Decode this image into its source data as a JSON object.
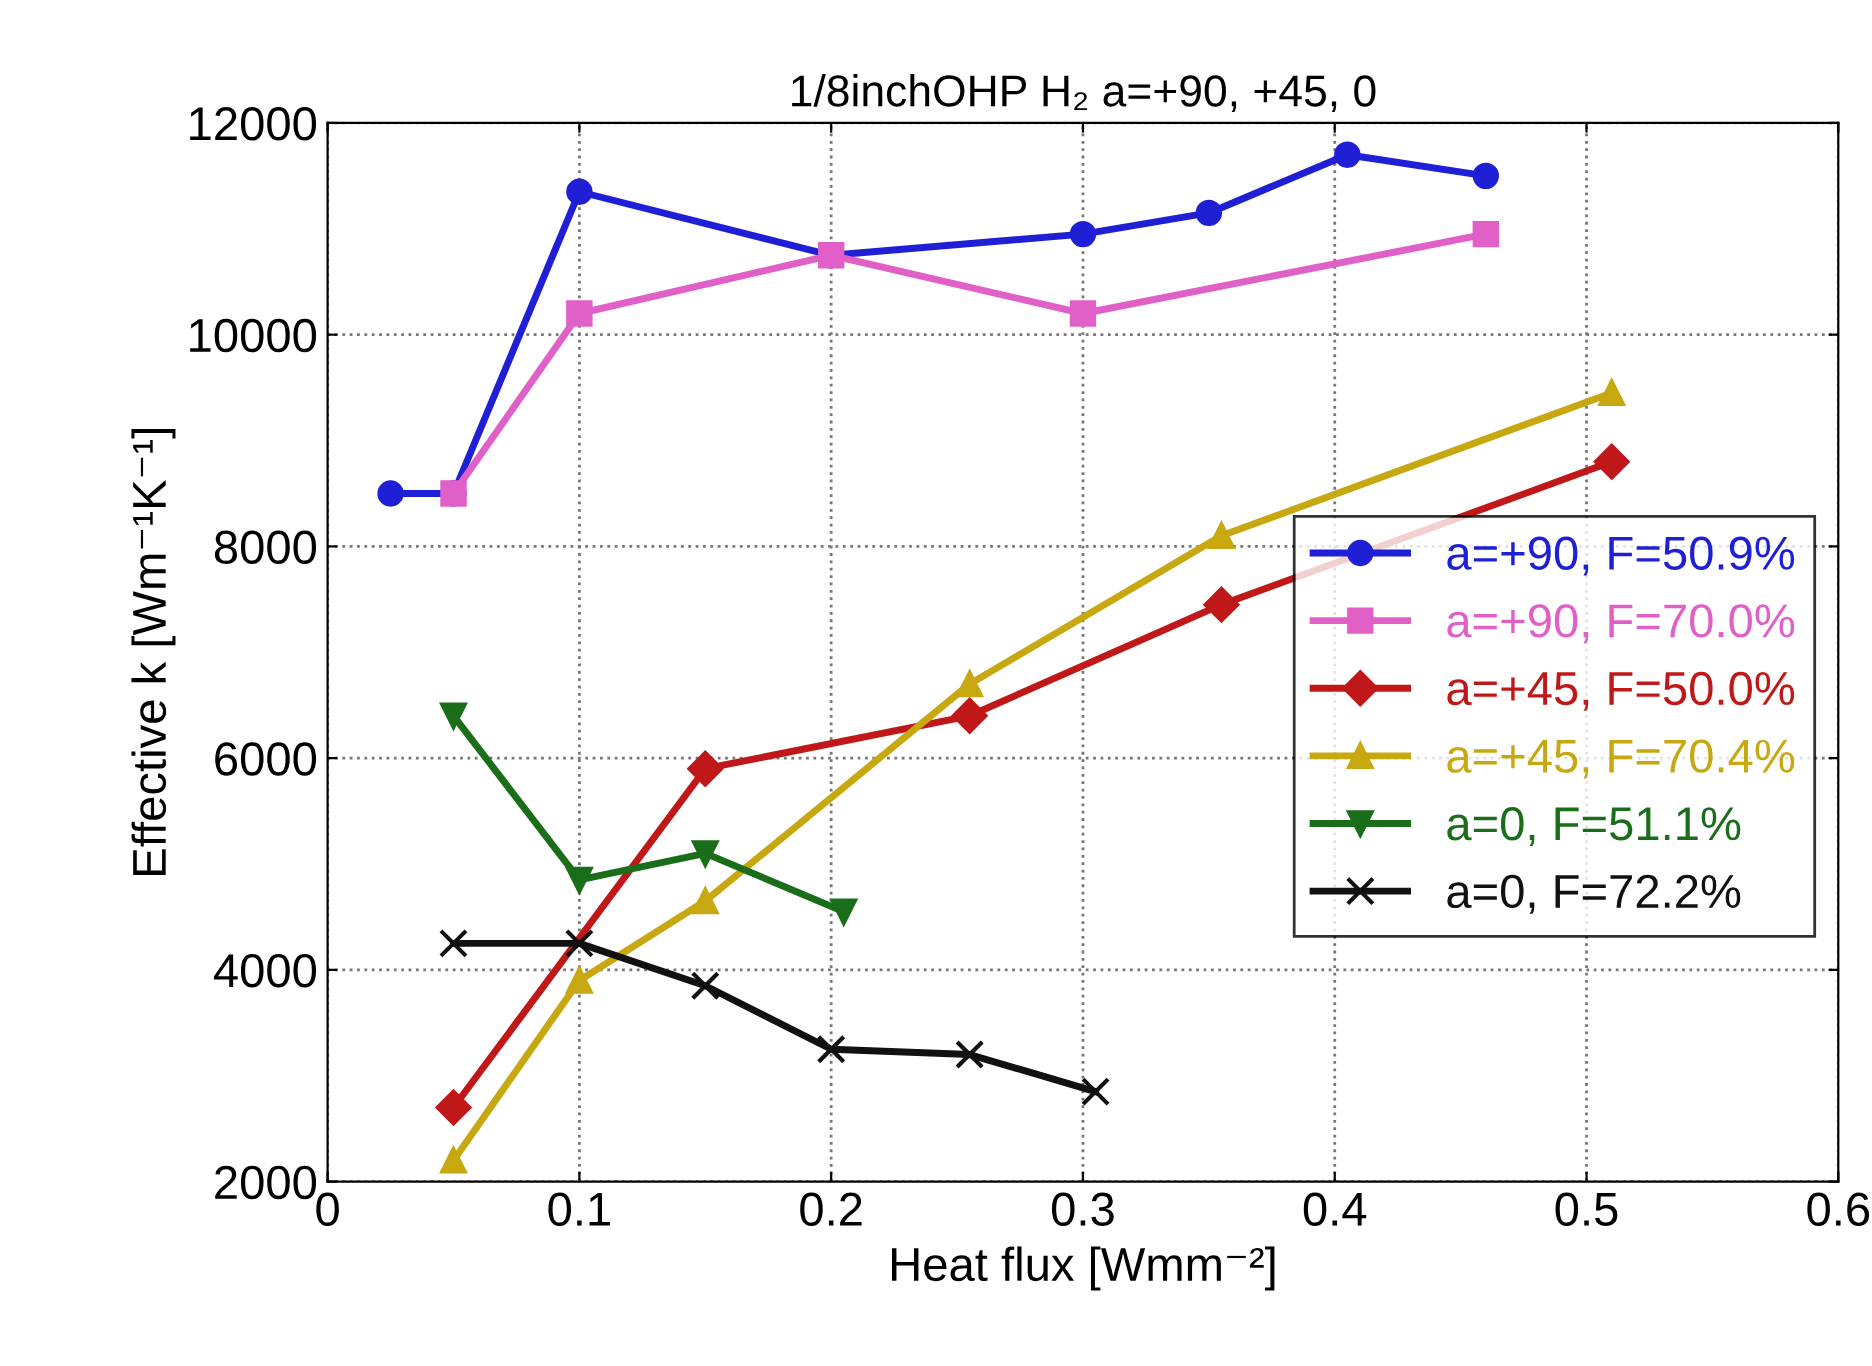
{
  "chart_data": {
    "type": "line",
    "title": "1/8inchOHP H₂ a=+90, +45, 0",
    "xlabel": "Heat flux [Wmm⁻²]",
    "ylabel": "Effective k [Wm⁻¹K⁻¹]",
    "xlim": [
      0,
      0.6
    ],
    "xticks": [
      0,
      0.1,
      0.2,
      0.3,
      0.4,
      0.5,
      0.6
    ],
    "ylim": [
      2000,
      12000
    ],
    "yticks": [
      2000,
      4000,
      6000,
      8000,
      10000,
      12000
    ],
    "grid": true,
    "legend": "right",
    "line_style": "solid",
    "series": [
      {
        "name": "a=+90, F=50.9%",
        "color": "#1f1fd6",
        "marker": "circle",
        "x": [
          0.025,
          0.05,
          0.1,
          0.2,
          0.3,
          0.35,
          0.405,
          0.46
        ],
        "values": [
          8500,
          8500,
          11350,
          10750,
          10950,
          11150,
          11700,
          11500
        ]
      },
      {
        "name": "a=+90, F=70.0%",
        "color": "#e060c8",
        "marker": "square",
        "x": [
          0.05,
          0.1,
          0.2,
          0.3,
          0.46
        ],
        "values": [
          8500,
          10200,
          10750,
          10200,
          10950
        ]
      },
      {
        "name": "a=+45, F=50.0%",
        "color": "#c01818",
        "marker": "diamond",
        "x": [
          0.05,
          0.15,
          0.255,
          0.355,
          0.51
        ],
        "values": [
          2700,
          5900,
          6400,
          7450,
          8800
        ]
      },
      {
        "name": "a=+45, F=70.4%",
        "color": "#c8a810",
        "marker": "triangle",
        "x": [
          0.05,
          0.1,
          0.15,
          0.255,
          0.355,
          0.51
        ],
        "values": [
          2200,
          3900,
          4650,
          6700,
          8100,
          9450
        ]
      },
      {
        "name": "a=0, F=51.1%",
        "color": "#1a6e1a",
        "marker": "triangle_down",
        "x": [
          0.05,
          0.1,
          0.15,
          0.205
        ],
        "values": [
          6400,
          4850,
          5100,
          4550
        ]
      },
      {
        "name": "a=0, F=72.2%",
        "color": "#111111",
        "marker": "cross",
        "x": [
          0.05,
          0.1,
          0.15,
          0.2,
          0.255,
          0.305
        ],
        "values": [
          4250,
          4250,
          3850,
          3250,
          3200,
          2850
        ]
      }
    ]
  }
}
